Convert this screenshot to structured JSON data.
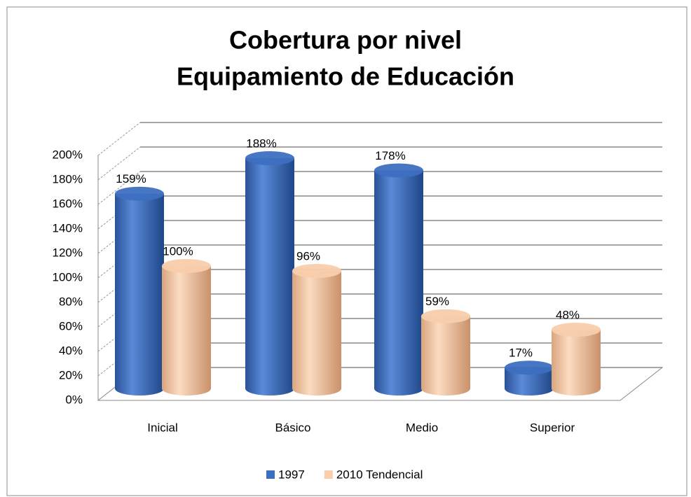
{
  "chart_data": {
    "type": "bar3d",
    "title": [
      "Cobertura por nivel",
      "Equipamiento de Educación"
    ],
    "categories": [
      "Inicial",
      "Básico",
      "Medio",
      "Superior"
    ],
    "series": [
      {
        "name": "1997",
        "color": "#3d6fc0",
        "values": [
          159,
          188,
          178,
          17
        ],
        "value_labels": [
          "159%",
          "188%",
          "178%",
          "17%"
        ]
      },
      {
        "name": "2010 Tendencial",
        "color": "#f8ceac",
        "values": [
          100,
          96,
          59,
          48
        ],
        "value_labels": [
          "100%",
          "96%",
          "59%",
          "48%"
        ]
      }
    ],
    "ylim": [
      0,
      200
    ],
    "yticks": [
      {
        "value": 0,
        "label": "0%"
      },
      {
        "value": 20,
        "label": "20%"
      },
      {
        "value": 40,
        "label": "40%"
      },
      {
        "value": 60,
        "label": "60%"
      },
      {
        "value": 80,
        "label": "80%"
      },
      {
        "value": 100,
        "label": "100%"
      },
      {
        "value": 120,
        "label": "120%"
      },
      {
        "value": 140,
        "label": "140%"
      },
      {
        "value": 160,
        "label": "160%"
      },
      {
        "value": 180,
        "label": "180%"
      },
      {
        "value": 200,
        "label": "200%"
      }
    ],
    "grid": true,
    "legend": "bottom"
  }
}
